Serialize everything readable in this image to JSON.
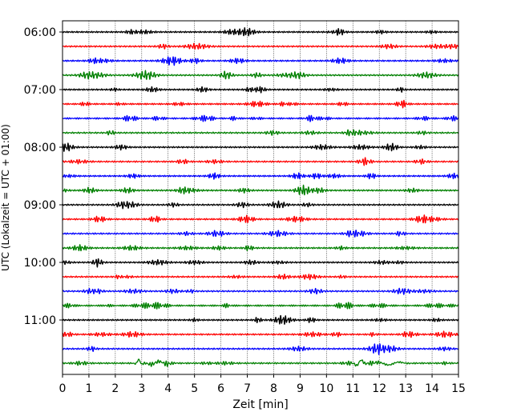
{
  "chart_data": {
    "type": "line",
    "title": "",
    "xlabel": "Zeit  [min]",
    "ylabel": "UTC (Lokalzeit = UTC + 01:00)",
    "xlim": [
      0,
      15
    ],
    "x_ticks": [
      "0",
      "1",
      "2",
      "3",
      "4",
      "5",
      "6",
      "7",
      "8",
      "9",
      "10",
      "11",
      "12",
      "13",
      "14",
      "15"
    ],
    "y_ticks": [
      "06:00",
      "07:00",
      "08:00",
      "09:00",
      "10:00",
      "11:00"
    ],
    "trace_interval_min": 15,
    "trace_colors": [
      "#000000",
      "#ff0000",
      "#0000ff",
      "#008000"
    ],
    "grid": {
      "x": true,
      "y": false,
      "style": "dotted"
    },
    "series": [
      {
        "start": "06:00"
      },
      {
        "start": "06:15"
      },
      {
        "start": "06:30"
      },
      {
        "start": "06:45"
      },
      {
        "start": "07:00"
      },
      {
        "start": "07:15"
      },
      {
        "start": "07:30"
      },
      {
        "start": "07:45"
      },
      {
        "start": "08:00"
      },
      {
        "start": "08:15"
      },
      {
        "start": "08:30"
      },
      {
        "start": "08:45"
      },
      {
        "start": "09:00"
      },
      {
        "start": "09:15"
      },
      {
        "start": "09:30"
      },
      {
        "start": "09:45"
      },
      {
        "start": "10:00"
      },
      {
        "start": "10:15"
      },
      {
        "start": "10:30"
      },
      {
        "start": "10:45"
      },
      {
        "start": "11:00"
      },
      {
        "start": "11:15"
      },
      {
        "start": "11:30"
      },
      {
        "start": "11:45"
      }
    ]
  }
}
